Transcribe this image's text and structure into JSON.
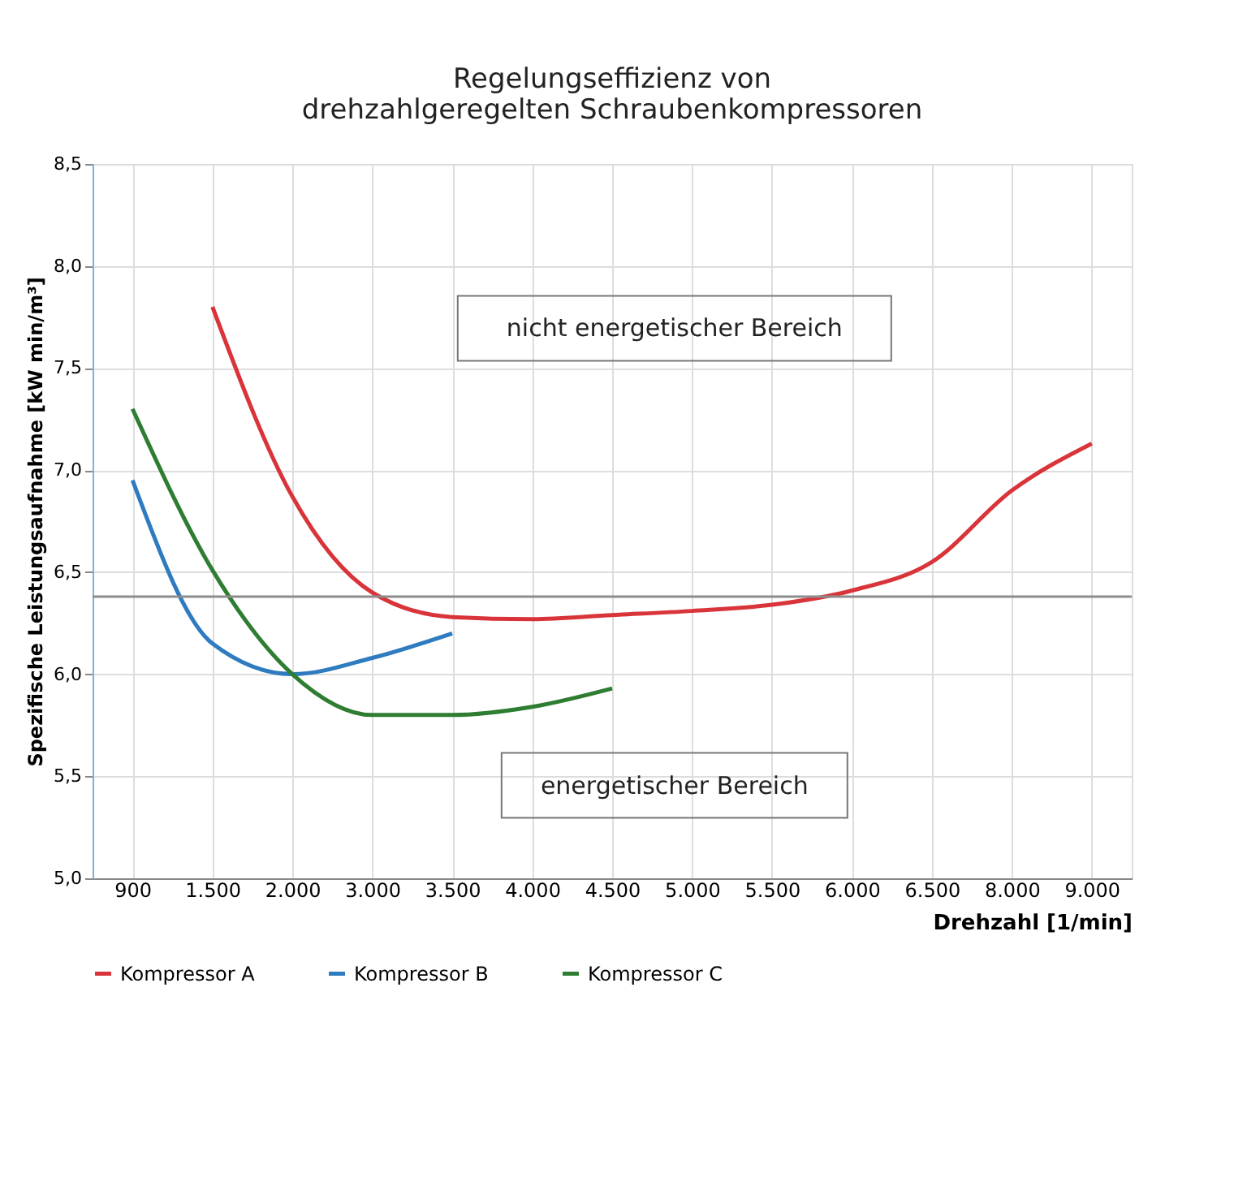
{
  "chart_data": {
    "type": "line",
    "title": "Regelungseffizienz von\ndrehzahlgeregelten Schraubenkompressoren",
    "xlabel": "Drehzahl [1/min]",
    "ylabel": "Spezifische Leistungsaufnahme [kW min/m³]",
    "categories": [
      "900",
      "1.500",
      "2.000",
      "3.000",
      "3.500",
      "4.000",
      "4.500",
      "5.000",
      "5.500",
      "6.000",
      "6.500",
      "8.000",
      "9.000"
    ],
    "series": [
      {
        "name": "Kompressor A",
        "color": "#d9343a",
        "values": [
          null,
          7.8,
          6.87,
          6.4,
          6.28,
          6.27,
          6.29,
          6.31,
          6.34,
          6.41,
          6.55,
          6.9,
          7.13
        ]
      },
      {
        "name": "Kompressor B",
        "color": "#2e7bbf",
        "values": [
          6.95,
          6.15,
          6.0,
          6.08,
          6.2,
          null,
          null,
          null,
          null,
          null,
          null,
          null,
          null
        ]
      },
      {
        "name": "Kompressor C",
        "color": "#2e7d32",
        "values": [
          7.3,
          6.51,
          6.0,
          5.8,
          5.8,
          5.84,
          5.93,
          null,
          null,
          null,
          null,
          null,
          null
        ]
      }
    ],
    "ylim": [
      5.0,
      8.5
    ],
    "yticks": [
      {
        "value": 5.0,
        "label": "5,0"
      },
      {
        "value": 5.5,
        "label": "5,5"
      },
      {
        "value": 6.0,
        "label": "6,0"
      },
      {
        "value": 6.5,
        "label": "6,5"
      },
      {
        "value": 7.0,
        "label": "7,0"
      },
      {
        "value": 7.5,
        "label": "7,5"
      },
      {
        "value": 8.0,
        "label": "8,0"
      },
      {
        "value": 8.5,
        "label": "8,5"
      }
    ],
    "ref_lines": [
      {
        "axis": "y",
        "value": 6.38,
        "color": "#8c8c8c"
      }
    ],
    "annotations": [
      "nicht energetischer Bereich",
      "energetischer Bereich"
    ],
    "grid": true,
    "legend": "bottom",
    "marker": "none",
    "line_style": "solid"
  }
}
